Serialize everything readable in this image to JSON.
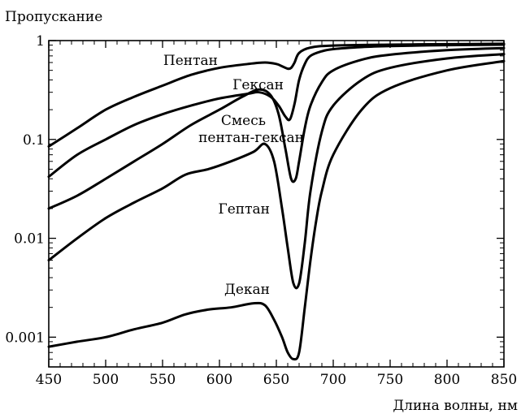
{
  "chart_data": {
    "type": "line",
    "title": "",
    "ylabel": "Пропускание",
    "xlabel": "Длина волны, нм",
    "xlim": [
      450,
      850
    ],
    "ylim": [
      0.0005,
      1
    ],
    "y_scale": "log",
    "x_ticks": [
      450,
      500,
      550,
      600,
      650,
      700,
      750,
      800,
      850
    ],
    "y_ticks": [
      {
        "value": 1,
        "label": "1"
      },
      {
        "value": 0.1,
        "label": "0.1"
      },
      {
        "value": 0.01,
        "label": "0.01"
      },
      {
        "value": 0.001,
        "label": "0.001"
      }
    ],
    "grid": false,
    "line_color": "#000000",
    "series": [
      {
        "name": "Пентан",
        "x": [
          450,
          475,
          500,
          525,
          550,
          575,
          600,
          625,
          640,
          650,
          655,
          660,
          663,
          666,
          670,
          680,
          700,
          750,
          800,
          850
        ],
        "y": [
          0.085,
          0.13,
          0.2,
          0.27,
          0.35,
          0.45,
          0.53,
          0.58,
          0.6,
          0.58,
          0.55,
          0.52,
          0.53,
          0.6,
          0.75,
          0.85,
          0.89,
          0.91,
          0.92,
          0.93
        ]
      },
      {
        "name": "Гексан",
        "x": [
          450,
          475,
          500,
          525,
          550,
          575,
          600,
          625,
          635,
          645,
          652,
          658,
          662,
          666,
          670,
          675,
          680,
          690,
          700,
          725,
          750,
          800,
          850
        ],
        "y": [
          0.042,
          0.07,
          0.1,
          0.14,
          0.18,
          0.22,
          0.26,
          0.29,
          0.3,
          0.27,
          0.22,
          0.17,
          0.16,
          0.23,
          0.4,
          0.58,
          0.7,
          0.78,
          0.82,
          0.86,
          0.88,
          0.9,
          0.91
        ]
      },
      {
        "name": "Смесь пентан-гексан",
        "x": [
          450,
          475,
          500,
          525,
          550,
          575,
          600,
          620,
          635,
          645,
          652,
          658,
          663,
          667,
          670,
          675,
          680,
          690,
          700,
          725,
          750,
          800,
          850
        ],
        "y": [
          0.02,
          0.027,
          0.04,
          0.06,
          0.09,
          0.14,
          0.2,
          0.27,
          0.32,
          0.28,
          0.18,
          0.08,
          0.04,
          0.04,
          0.06,
          0.13,
          0.22,
          0.38,
          0.5,
          0.64,
          0.72,
          0.8,
          0.84
        ]
      },
      {
        "name": "Гептан",
        "x": [
          450,
          475,
          500,
          525,
          550,
          570,
          590,
          610,
          630,
          640,
          648,
          655,
          660,
          665,
          670,
          675,
          680,
          690,
          700,
          725,
          750,
          800,
          850
        ],
        "y": [
          0.006,
          0.01,
          0.016,
          0.023,
          0.032,
          0.044,
          0.05,
          0.06,
          0.075,
          0.09,
          0.06,
          0.02,
          0.008,
          0.0035,
          0.0035,
          0.009,
          0.03,
          0.12,
          0.22,
          0.4,
          0.53,
          0.66,
          0.73
        ]
      },
      {
        "name": "Декан",
        "x": [
          450,
          475,
          500,
          525,
          550,
          570,
          590,
          610,
          630,
          640,
          648,
          655,
          660,
          665,
          670,
          675,
          680,
          685,
          690,
          700,
          725,
          750,
          800,
          850
        ],
        "y": [
          0.0008,
          0.0009,
          0.001,
          0.0012,
          0.0014,
          0.0017,
          0.0019,
          0.002,
          0.0022,
          0.0021,
          0.0015,
          0.001,
          0.0007,
          0.0006,
          0.0007,
          0.002,
          0.006,
          0.015,
          0.03,
          0.07,
          0.2,
          0.33,
          0.5,
          0.62
        ]
      }
    ],
    "annotations": [
      {
        "text": "Пентан",
        "series": "Пентан"
      },
      {
        "text": "Гексан",
        "series": "Гексан"
      },
      {
        "text": "Смесь",
        "series": "Смесь пентан-гексан"
      },
      {
        "text": "пентан-гексан",
        "series": "Смесь пентан-гексан"
      },
      {
        "text": "Гептан",
        "series": "Гептан"
      },
      {
        "text": "Декан",
        "series": "Декан"
      }
    ]
  }
}
